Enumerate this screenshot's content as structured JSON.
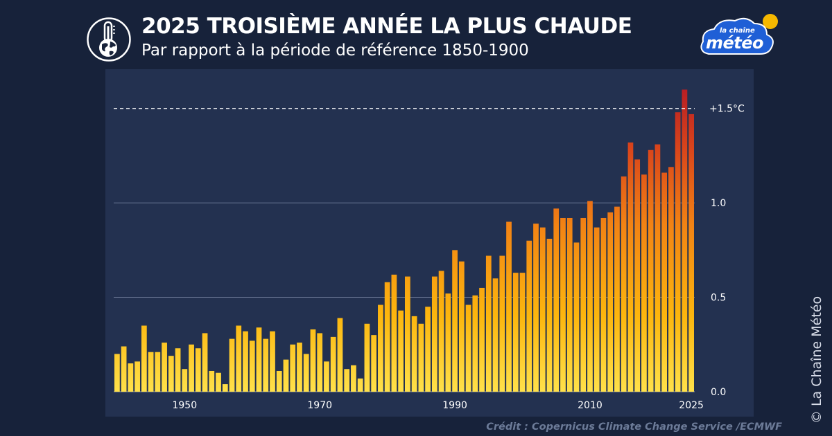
{
  "header": {
    "title": "2025 TROISIÈME ANNÉE LA PLUS CHAUDE",
    "subtitle": "Par rapport à la période de référence 1850-1900",
    "icon": "thermometer-globe-icon"
  },
  "logo": {
    "line1": "la chaîne",
    "line2": "météo",
    "colors": {
      "cloud": "#1f5fd6",
      "sun": "#f5b800"
    }
  },
  "credit": "Crédit : Copernicus Climate Change Service /ECMWF",
  "watermark": "© La Chaîne Météo",
  "colors": {
    "background": "#17223a",
    "panel": "#233150",
    "bar_low": "#ffd21f",
    "bar_mid": "#f08a12",
    "bar_high": "#b81e24",
    "threshold_line": "#ffffff"
  },
  "chart_data": {
    "type": "bar",
    "title": "2025 TROISIÈME ANNÉE LA PLUS CHAUDE",
    "subtitle": "Par rapport à la période de référence 1850-1900",
    "x": [
      1940,
      1941,
      1942,
      1943,
      1944,
      1945,
      1946,
      1947,
      1948,
      1949,
      1950,
      1951,
      1952,
      1953,
      1954,
      1955,
      1956,
      1957,
      1958,
      1959,
      1960,
      1961,
      1962,
      1963,
      1964,
      1965,
      1966,
      1967,
      1968,
      1969,
      1970,
      1971,
      1972,
      1973,
      1974,
      1975,
      1976,
      1977,
      1978,
      1979,
      1980,
      1981,
      1982,
      1983,
      1984,
      1985,
      1986,
      1987,
      1988,
      1989,
      1990,
      1991,
      1992,
      1993,
      1994,
      1995,
      1996,
      1997,
      1998,
      1999,
      2000,
      2001,
      2002,
      2003,
      2004,
      2005,
      2006,
      2007,
      2008,
      2009,
      2010,
      2011,
      2012,
      2013,
      2014,
      2015,
      2016,
      2017,
      2018,
      2019,
      2020,
      2021,
      2022,
      2023,
      2024,
      2025
    ],
    "values": [
      0.2,
      0.24,
      0.15,
      0.16,
      0.35,
      0.21,
      0.21,
      0.26,
      0.19,
      0.23,
      0.12,
      0.25,
      0.23,
      0.31,
      0.11,
      0.1,
      0.04,
      0.28,
      0.35,
      0.32,
      0.27,
      0.34,
      0.28,
      0.32,
      0.11,
      0.17,
      0.25,
      0.26,
      0.2,
      0.33,
      0.31,
      0.16,
      0.29,
      0.39,
      0.12,
      0.14,
      0.07,
      0.36,
      0.3,
      0.46,
      0.58,
      0.62,
      0.43,
      0.61,
      0.4,
      0.36,
      0.45,
      0.61,
      0.64,
      0.52,
      0.75,
      0.69,
      0.46,
      0.51,
      0.55,
      0.72,
      0.6,
      0.72,
      0.9,
      0.63,
      0.63,
      0.8,
      0.89,
      0.87,
      0.81,
      0.97,
      0.92,
      0.92,
      0.79,
      0.92,
      1.01,
      0.87,
      0.92,
      0.95,
      0.98,
      1.14,
      1.32,
      1.23,
      1.15,
      1.28,
      1.31,
      1.16,
      1.19,
      1.48,
      1.6,
      1.47
    ],
    "x_ticks": [
      {
        "year": 1950,
        "label": "1950"
      },
      {
        "year": 1970,
        "label": "1970"
      },
      {
        "year": 1990,
        "label": "1990"
      },
      {
        "year": 2010,
        "label": "2010"
      },
      {
        "year": 2025,
        "label": "2025"
      }
    ],
    "y_ticks": [
      {
        "value": 0.0,
        "label": "0.0"
      },
      {
        "value": 0.5,
        "label": "0.5"
      },
      {
        "value": 1.0,
        "label": "1.0"
      }
    ],
    "threshold": {
      "value": 1.5,
      "label": "+1.5°C"
    },
    "ylim": [
      0,
      1.62
    ],
    "xlim": [
      1939.5,
      2025.5
    ],
    "grid": true,
    "y_axis_side": "right",
    "xlabel": "",
    "ylabel": ""
  }
}
